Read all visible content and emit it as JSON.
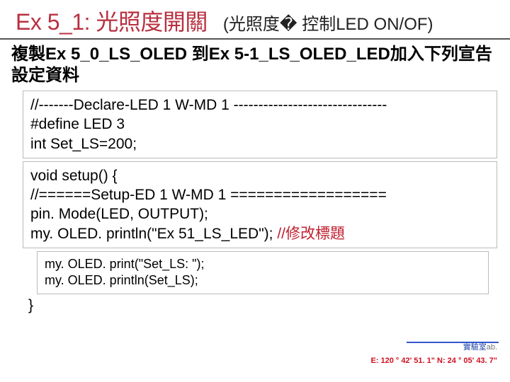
{
  "header": {
    "title_main": "Ex 5_1: 光照度開關",
    "title_sub": "(光照度� 控制LED ON/OF)",
    "title_main_color": "#b83040",
    "title_sub_color": "#222222",
    "underline_color": "#555555"
  },
  "instruction": {
    "text": "複製Ex 5_0_LS_OLED 到Ex 5-1_LS_OLED_LED加入下列宣告設定資料",
    "color": "#000000",
    "font_weight": 700
  },
  "code_block_1": {
    "lines": [
      "//-------Declare-LED 1 W-MD 1 -------------------------------",
      "#define LED 3",
      "int Set_LS=200;"
    ],
    "border_color": "#bbbbbb"
  },
  "code_block_2": {
    "line1": "void setup() {",
    "line2": " //======Setup-ED 1 W-MD 1 ==================",
    "line3": "  pin. Mode(LED, OUTPUT);",
    "line4_prefix": "  my. OLED. println(\"Ex 51_LS_LED\");  ",
    "line4_comment": "//修改標題",
    "comment_color": "#c02030"
  },
  "code_block_3": {
    "line1": "my. OLED. print(\"Set_LS: \");",
    "line2": " my. OLED. println(Set_LS);"
  },
  "close_brace": "}",
  "footer": {
    "lab_text": "實驗室",
    "ab_text": "ab.",
    "coord_text": "E: 120 ° 42' 51. 1\"  N: 24 ° 05' 43. 7\"",
    "lab_color": "#2244aa",
    "coord_color": "#d01020",
    "line_color": "#3355cc"
  }
}
